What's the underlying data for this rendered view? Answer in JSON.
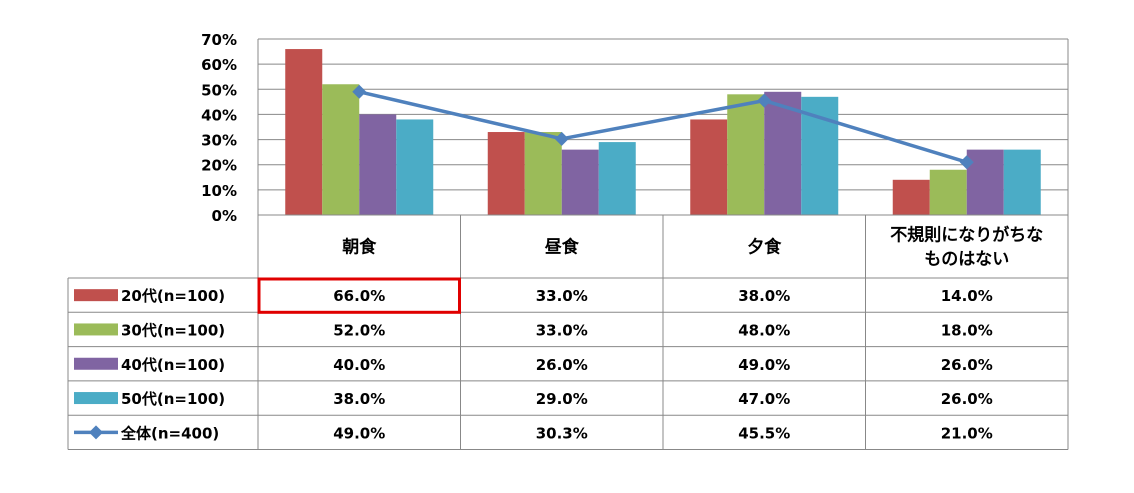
{
  "chart_data": {
    "type": "bar",
    "categories": [
      "朝食",
      "昼食",
      "夕食",
      "不規則になりがちな\nものはない"
    ],
    "ylim": [
      0,
      70
    ],
    "yticks": [
      "0%",
      "10%",
      "20%",
      "30%",
      "40%",
      "50%",
      "60%",
      "70%"
    ],
    "grid": true,
    "series": [
      {
        "name": "20代(n=100)",
        "kind": "bar",
        "color": "#C0504D",
        "values": [
          66.0,
          33.0,
          38.0,
          14.0
        ],
        "labels": [
          "66.0%",
          "33.0%",
          "38.0%",
          "14.0%"
        ]
      },
      {
        "name": "30代(n=100)",
        "kind": "bar",
        "color": "#9BBB59",
        "values": [
          52.0,
          33.0,
          48.0,
          18.0
        ],
        "labels": [
          "52.0%",
          "33.0%",
          "48.0%",
          "18.0%"
        ]
      },
      {
        "name": "40代(n=100)",
        "kind": "bar",
        "color": "#8064A2",
        "values": [
          40.0,
          26.0,
          49.0,
          26.0
        ],
        "labels": [
          "40.0%",
          "26.0%",
          "49.0%",
          "26.0%"
        ]
      },
      {
        "name": "50代(n=100)",
        "kind": "bar",
        "color": "#4BACC6",
        "values": [
          38.0,
          29.0,
          47.0,
          26.0
        ],
        "labels": [
          "38.0%",
          "29.0%",
          "47.0%",
          "26.0%"
        ]
      },
      {
        "name": "全体(n=400)",
        "kind": "line",
        "color": "#4F81BD",
        "values": [
          49.0,
          30.3,
          45.5,
          21.0
        ],
        "labels": [
          "49.0%",
          "30.3%",
          "45.5%",
          "21.0%"
        ]
      }
    ],
    "highlight": {
      "series": 0,
      "category": 0,
      "color": "#E00000"
    }
  }
}
